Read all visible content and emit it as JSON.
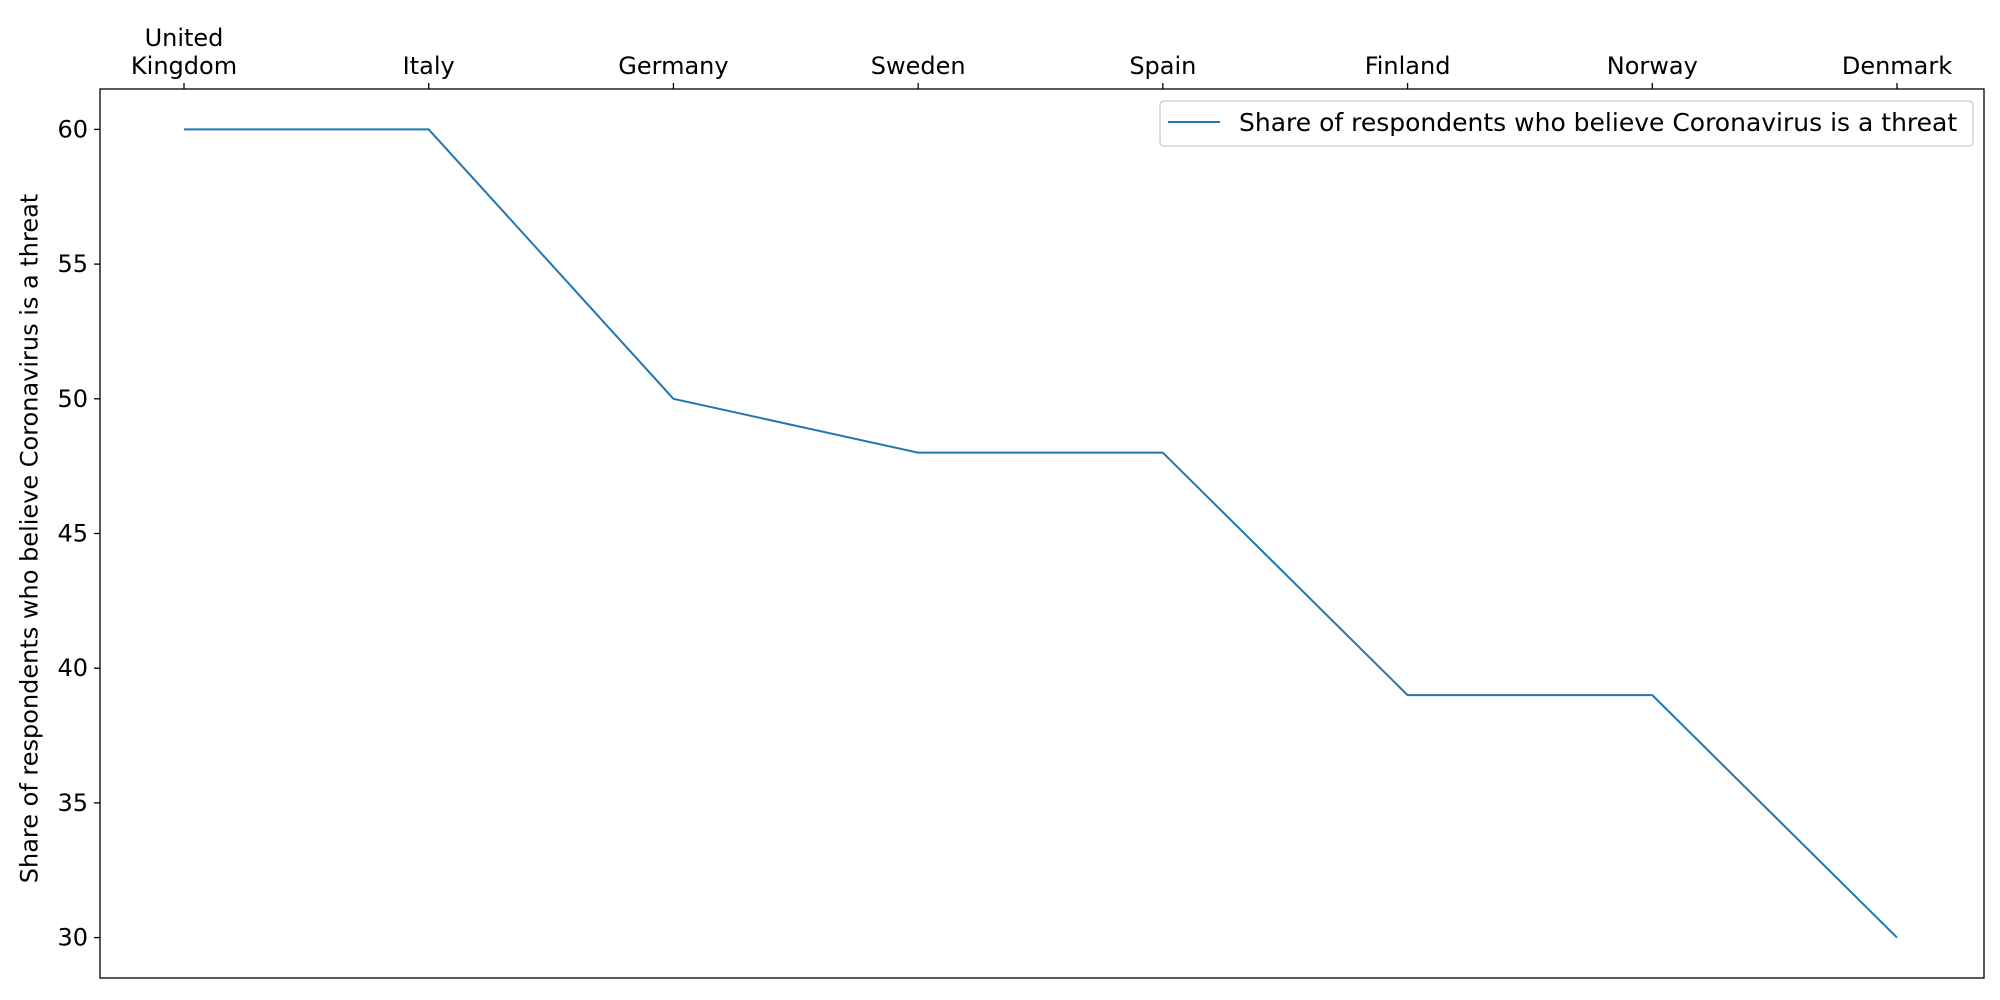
{
  "chart_data": {
    "type": "line",
    "title": "",
    "xlabel": "",
    "ylabel": "Share of respondents who believe Coronavirus is a threat",
    "x_axis_position": "top",
    "categories": [
      [
        "United",
        "Kingdom"
      ],
      [
        "Italy"
      ],
      [
        "Germany"
      ],
      [
        "Sweden"
      ],
      [
        "Spain"
      ],
      [
        "Finland"
      ],
      [
        "Norway"
      ],
      [
        "Denmark"
      ]
    ],
    "series": [
      {
        "name": "Share of respondents who believe Coronavirus is a threat",
        "values": [
          60,
          60,
          50,
          48,
          48,
          39,
          39,
          30
        ],
        "color": "#1f77b4"
      }
    ],
    "ylim": [
      28.5,
      61.5
    ],
    "yticks": [
      30,
      35,
      40,
      45,
      50,
      55,
      60
    ],
    "grid": false,
    "legend_position": "top-right"
  }
}
